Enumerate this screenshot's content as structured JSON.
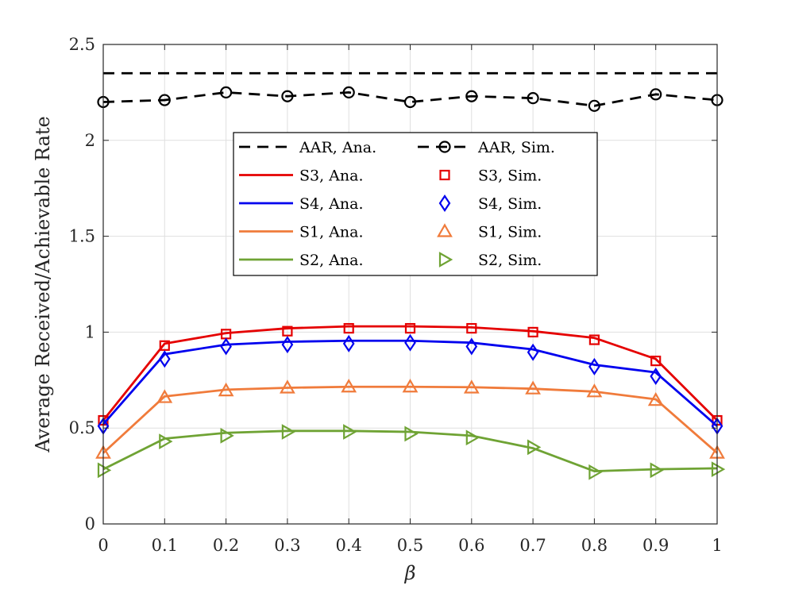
{
  "chart_data": {
    "type": "line",
    "title": "",
    "xlabel": "β",
    "ylabel": "Average Received/Achievable Rate",
    "xlim": [
      0,
      1
    ],
    "ylim": [
      0,
      2.5
    ],
    "grid": true,
    "legend_position": "upper-center",
    "x": [
      0,
      0.1,
      0.2,
      0.3,
      0.4,
      0.5,
      0.6,
      0.7,
      0.8,
      0.9,
      1
    ],
    "x_ticks": [
      0,
      0.1,
      0.2,
      0.3,
      0.4,
      0.5,
      0.6,
      0.7,
      0.8,
      0.9,
      1
    ],
    "x_tick_labels": [
      "0",
      "0.1",
      "0.2",
      "0.3",
      "0.4",
      "0.5",
      "0.6",
      "0.7",
      "0.8",
      "0.9",
      "1"
    ],
    "y_ticks": [
      0,
      0.5,
      1,
      1.5,
      2,
      2.5
    ],
    "y_tick_labels": [
      "0",
      "0.5",
      "1",
      "1.5",
      "2",
      "2.5"
    ],
    "series": [
      {
        "name": "AAR, Ana.",
        "color": "#000000",
        "style": "dashed",
        "marker": "none",
        "values": [
          2.35,
          2.35,
          2.35,
          2.35,
          2.35,
          2.35,
          2.35,
          2.35,
          2.35,
          2.35,
          2.35
        ]
      },
      {
        "name": "AAR, Sim.",
        "color": "#000000",
        "style": "dashed",
        "marker": "circle",
        "values": [
          2.2,
          2.21,
          2.25,
          2.23,
          2.25,
          2.2,
          2.23,
          2.22,
          2.18,
          2.24,
          2.21
        ]
      },
      {
        "name": "S3, Ana.",
        "color": "#e50000",
        "style": "solid",
        "marker": "none",
        "values": [
          0.54,
          0.94,
          0.995,
          1.02,
          1.03,
          1.03,
          1.025,
          1.005,
          0.97,
          0.86,
          0.54
        ]
      },
      {
        "name": "S3, Sim.",
        "color": "#e50000",
        "style": "none",
        "marker": "square",
        "values": [
          0.54,
          0.93,
          0.99,
          1.005,
          1.02,
          1.02,
          1.02,
          1.0,
          0.96,
          0.85,
          0.54
        ]
      },
      {
        "name": "S4, Ana.",
        "color": "#0000ee",
        "style": "solid",
        "marker": "none",
        "values": [
          0.52,
          0.885,
          0.935,
          0.95,
          0.955,
          0.955,
          0.945,
          0.91,
          0.83,
          0.79,
          0.51
        ]
      },
      {
        "name": "S4, Sim.",
        "color": "#0000ee",
        "style": "none",
        "marker": "diamond",
        "values": [
          0.51,
          0.86,
          0.925,
          0.935,
          0.94,
          0.945,
          0.925,
          0.895,
          0.82,
          0.77,
          0.51
        ]
      },
      {
        "name": "S1, Ana.",
        "color": "#f07b3b",
        "style": "solid",
        "marker": "none",
        "values": [
          0.37,
          0.665,
          0.7,
          0.71,
          0.715,
          0.715,
          0.713,
          0.705,
          0.69,
          0.65,
          0.37
        ]
      },
      {
        "name": "S1, Sim.",
        "color": "#f07b3b",
        "style": "none",
        "marker": "triangle-up",
        "values": [
          0.37,
          0.66,
          0.695,
          0.71,
          0.715,
          0.715,
          0.71,
          0.705,
          0.69,
          0.645,
          0.37
        ]
      },
      {
        "name": "S2, Ana.",
        "color": "#6fa334",
        "style": "solid",
        "marker": "none",
        "values": [
          0.285,
          0.445,
          0.475,
          0.485,
          0.485,
          0.48,
          0.46,
          0.395,
          0.275,
          0.285,
          0.29
        ]
      },
      {
        "name": "S2, Sim.",
        "color": "#6fa334",
        "style": "none",
        "marker": "triangle-right",
        "values": [
          0.28,
          0.43,
          0.46,
          0.48,
          0.48,
          0.47,
          0.45,
          0.4,
          0.27,
          0.28,
          0.285
        ]
      }
    ],
    "legend": [
      [
        "AAR, Ana.",
        "AAR, Sim."
      ],
      [
        "S3, Ana.",
        "S3, Sim."
      ],
      [
        "S4, Ana.",
        "S4, Sim."
      ],
      [
        "S1, Ana.",
        "S1, Sim."
      ],
      [
        "S2, Ana.",
        "S2, Sim."
      ]
    ]
  }
}
